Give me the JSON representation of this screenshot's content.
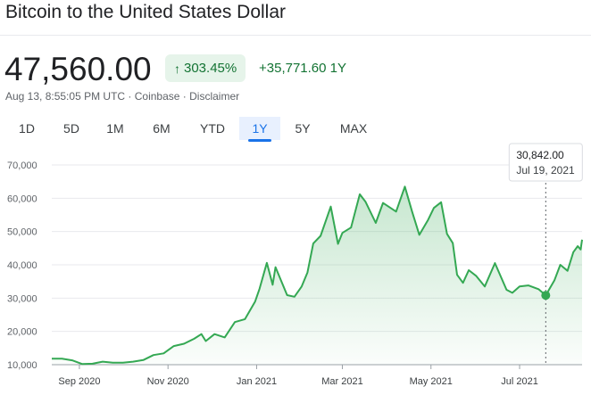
{
  "title": "Bitcoin to the United States Dollar",
  "price": "47,560.00",
  "percent_change": "303.45%",
  "abs_change": "+35,771.60",
  "abs_change_period": "1Y",
  "meta": {
    "timestamp": "Aug 13, 8:55:05 PM UTC",
    "separator": " · ",
    "source": "Coinbase",
    "disclaimer": "Disclaimer"
  },
  "tabs": [
    {
      "label": "1D",
      "active": false
    },
    {
      "label": "5D",
      "active": false
    },
    {
      "label": "1M",
      "active": false
    },
    {
      "label": "6M",
      "active": false
    },
    {
      "label": "YTD",
      "active": false
    },
    {
      "label": "1Y",
      "active": true
    },
    {
      "label": "5Y",
      "active": false
    },
    {
      "label": "MAX",
      "active": false
    }
  ],
  "colors": {
    "line": "#34a853",
    "positive": "#137333",
    "accent": "#1a73e8"
  },
  "tooltip": {
    "value": "30,842.00",
    "date": "Jul 19, 2021"
  },
  "chart_data": {
    "type": "area",
    "title": "",
    "xlabel": "",
    "ylabel": "",
    "ylim": [
      10000,
      70000
    ],
    "yticks": [
      "10,000",
      "20,000",
      "30,000",
      "40,000",
      "50,000",
      "60,000",
      "70,000"
    ],
    "xticks": [
      {
        "label": "Sep 2020",
        "date": "2020-09-01"
      },
      {
        "label": "Nov 2020",
        "date": "2020-11-01"
      },
      {
        "label": "Jan 2021",
        "date": "2021-01-01"
      },
      {
        "label": "Mar 2021",
        "date": "2021-03-01"
      },
      {
        "label": "May 2021",
        "date": "2021-05-01"
      },
      {
        "label": "Jul 2021",
        "date": "2021-07-01"
      }
    ],
    "x_range": [
      "2020-08-13",
      "2021-08-13"
    ],
    "highlight": {
      "date": "2021-07-19",
      "value": 30842
    },
    "series": [
      {
        "points": [
          [
            "2020-08-13",
            11790
          ],
          [
            "2020-08-20",
            11800
          ],
          [
            "2020-08-27",
            11300
          ],
          [
            "2020-09-03",
            10200
          ],
          [
            "2020-09-10",
            10300
          ],
          [
            "2020-09-17",
            10900
          ],
          [
            "2020-09-24",
            10600
          ],
          [
            "2020-10-01",
            10600
          ],
          [
            "2020-10-08",
            10900
          ],
          [
            "2020-10-15",
            11400
          ],
          [
            "2020-10-22",
            12900
          ],
          [
            "2020-10-29",
            13400
          ],
          [
            "2020-11-05",
            15600
          ],
          [
            "2020-11-12",
            16300
          ],
          [
            "2020-11-19",
            17800
          ],
          [
            "2020-11-24",
            19200
          ],
          [
            "2020-11-27",
            17100
          ],
          [
            "2020-12-03",
            19200
          ],
          [
            "2020-12-10",
            18200
          ],
          [
            "2020-12-17",
            22800
          ],
          [
            "2020-12-24",
            23700
          ],
          [
            "2020-12-31",
            29000
          ],
          [
            "2021-01-03",
            32800
          ],
          [
            "2021-01-08",
            40600
          ],
          [
            "2021-01-12",
            34000
          ],
          [
            "2021-01-14",
            39300
          ],
          [
            "2021-01-22",
            30900
          ],
          [
            "2021-01-27",
            30400
          ],
          [
            "2021-02-01",
            33500
          ],
          [
            "2021-02-05",
            37700
          ],
          [
            "2021-02-09",
            46400
          ],
          [
            "2021-02-14",
            48700
          ],
          [
            "2021-02-21",
            57500
          ],
          [
            "2021-02-26",
            46300
          ],
          [
            "2021-03-01",
            49600
          ],
          [
            "2021-03-07",
            51200
          ],
          [
            "2021-03-13",
            61200
          ],
          [
            "2021-03-17",
            58900
          ],
          [
            "2021-03-24",
            52600
          ],
          [
            "2021-03-29",
            58600
          ],
          [
            "2021-04-07",
            56000
          ],
          [
            "2021-04-13",
            63500
          ],
          [
            "2021-04-18",
            56000
          ],
          [
            "2021-04-23",
            49000
          ],
          [
            "2021-04-29",
            53500
          ],
          [
            "2021-05-03",
            57100
          ],
          [
            "2021-05-08",
            58800
          ],
          [
            "2021-05-12",
            49300
          ],
          [
            "2021-05-16",
            46500
          ],
          [
            "2021-05-19",
            37000
          ],
          [
            "2021-05-23",
            34600
          ],
          [
            "2021-05-27",
            38400
          ],
          [
            "2021-06-01",
            36700
          ],
          [
            "2021-06-07",
            33500
          ],
          [
            "2021-06-14",
            40500
          ],
          [
            "2021-06-22",
            32500
          ],
          [
            "2021-06-26",
            31600
          ],
          [
            "2021-07-01",
            33500
          ],
          [
            "2021-07-07",
            33800
          ],
          [
            "2021-07-14",
            32700
          ],
          [
            "2021-07-19",
            30842
          ],
          [
            "2021-07-25",
            35400
          ],
          [
            "2021-07-29",
            40000
          ],
          [
            "2021-08-03",
            38200
          ],
          [
            "2021-08-07",
            43800
          ],
          [
            "2021-08-10",
            45600
          ],
          [
            "2021-08-12",
            44600
          ],
          [
            "2021-08-13",
            47560
          ]
        ]
      }
    ]
  }
}
